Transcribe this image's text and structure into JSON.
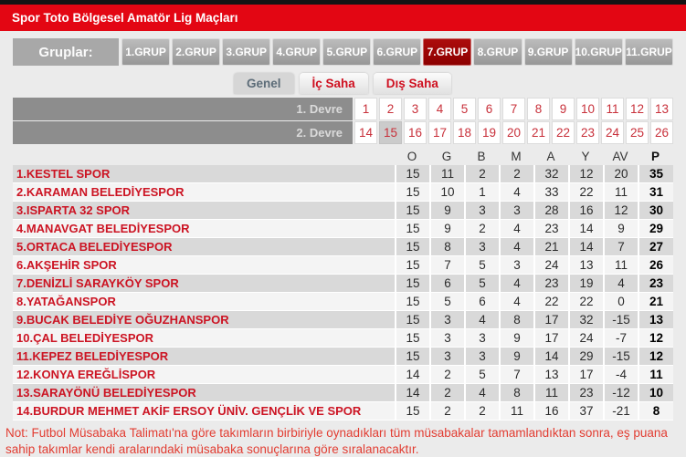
{
  "header": {
    "title": "Spor Toto Bölgesel Amatör Lig Maçları"
  },
  "groups": {
    "label": "Gruplar:",
    "items": [
      "1.GRUP",
      "2.GRUP",
      "3.GRUP",
      "4.GRUP",
      "5.GRUP",
      "6.GRUP",
      "7.GRUP",
      "8.GRUP",
      "9.GRUP",
      "10.GRUP",
      "11.GRUP"
    ],
    "active": "7.GRUP"
  },
  "view_tabs": [
    {
      "key": "genel",
      "label": "Genel",
      "active": true
    },
    {
      "key": "ic-saha",
      "label": "İç Saha",
      "active": false
    },
    {
      "key": "dis-saha",
      "label": "Dış Saha",
      "active": false
    }
  ],
  "rounds": {
    "first": {
      "label": "1. Devre",
      "weeks": [
        1,
        2,
        3,
        4,
        5,
        6,
        7,
        8,
        9,
        10,
        11,
        12,
        13
      ],
      "active_week": null
    },
    "second": {
      "label": "2. Devre",
      "weeks": [
        14,
        15,
        16,
        17,
        18,
        19,
        20,
        21,
        22,
        23,
        24,
        25,
        26
      ],
      "active_week": 15
    }
  },
  "standings": {
    "columns": [
      "O",
      "G",
      "B",
      "M",
      "A",
      "Y",
      "AV",
      "P"
    ],
    "teams": [
      {
        "name": "1.KESTEL SPOR",
        "stats": [
          15,
          11,
          2,
          2,
          32,
          12,
          20,
          35
        ]
      },
      {
        "name": "2.KARAMAN BELEDİYESPOR",
        "stats": [
          15,
          10,
          1,
          4,
          33,
          22,
          11,
          31
        ]
      },
      {
        "name": "3.ISPARTA 32 SPOR",
        "stats": [
          15,
          9,
          3,
          3,
          28,
          16,
          12,
          30
        ]
      },
      {
        "name": "4.MANAVGAT BELEDİYESPOR",
        "stats": [
          15,
          9,
          2,
          4,
          23,
          14,
          9,
          29
        ]
      },
      {
        "name": "5.ORTACA BELEDİYESPOR",
        "stats": [
          15,
          8,
          3,
          4,
          21,
          14,
          7,
          27
        ]
      },
      {
        "name": "6.AKŞEHİR SPOR",
        "stats": [
          15,
          7,
          5,
          3,
          24,
          13,
          11,
          26
        ]
      },
      {
        "name": "7.DENİZLİ SARAYKÖY SPOR",
        "stats": [
          15,
          6,
          5,
          4,
          23,
          19,
          4,
          23
        ]
      },
      {
        "name": "8.YATAĞANSPOR",
        "stats": [
          15,
          5,
          6,
          4,
          22,
          22,
          0,
          21
        ]
      },
      {
        "name": "9.BUCAK BELEDİYE OĞUZHANSPOR",
        "stats": [
          15,
          3,
          4,
          8,
          17,
          32,
          -15,
          13
        ]
      },
      {
        "name": "10.ÇAL BELEDİYESPOR",
        "stats": [
          15,
          3,
          3,
          9,
          17,
          24,
          -7,
          12
        ]
      },
      {
        "name": "11.KEPEZ BELEDİYESPOR",
        "stats": [
          15,
          3,
          3,
          9,
          14,
          29,
          -15,
          12
        ]
      },
      {
        "name": "12.KONYA EREĞLİSPOR",
        "stats": [
          14,
          2,
          5,
          7,
          13,
          17,
          -4,
          11
        ]
      },
      {
        "name": "13.SARAYÖNÜ BELEDİYESPOR",
        "stats": [
          14,
          2,
          4,
          8,
          11,
          23,
          -12,
          10
        ]
      },
      {
        "name": "14.BURDUR MEHMET AKİF ERSOY ÜNİV. GENÇLİK VE SPOR",
        "stats": [
          15,
          2,
          2,
          11,
          16,
          37,
          -21,
          8
        ]
      }
    ]
  },
  "note": "Not: Futbol Müsabaka Talimatı'na göre takımların birbiriyle oynadıkları tüm müsabakalar tamamlandıktan sonra, eş puana sahip takımlar kendi aralarındaki müsabaka sonuçlarına göre sıralanacaktır.",
  "colors": {
    "brand_red": "#e30613",
    "active_group_red": "#8c0000",
    "team_link_red": "#cc1423",
    "week_number_red": "#c8303a",
    "row_stripe_gray": "#d9d9d9",
    "round_bar_gray": "#8d8d8d",
    "note_red": "#e23d32"
  }
}
